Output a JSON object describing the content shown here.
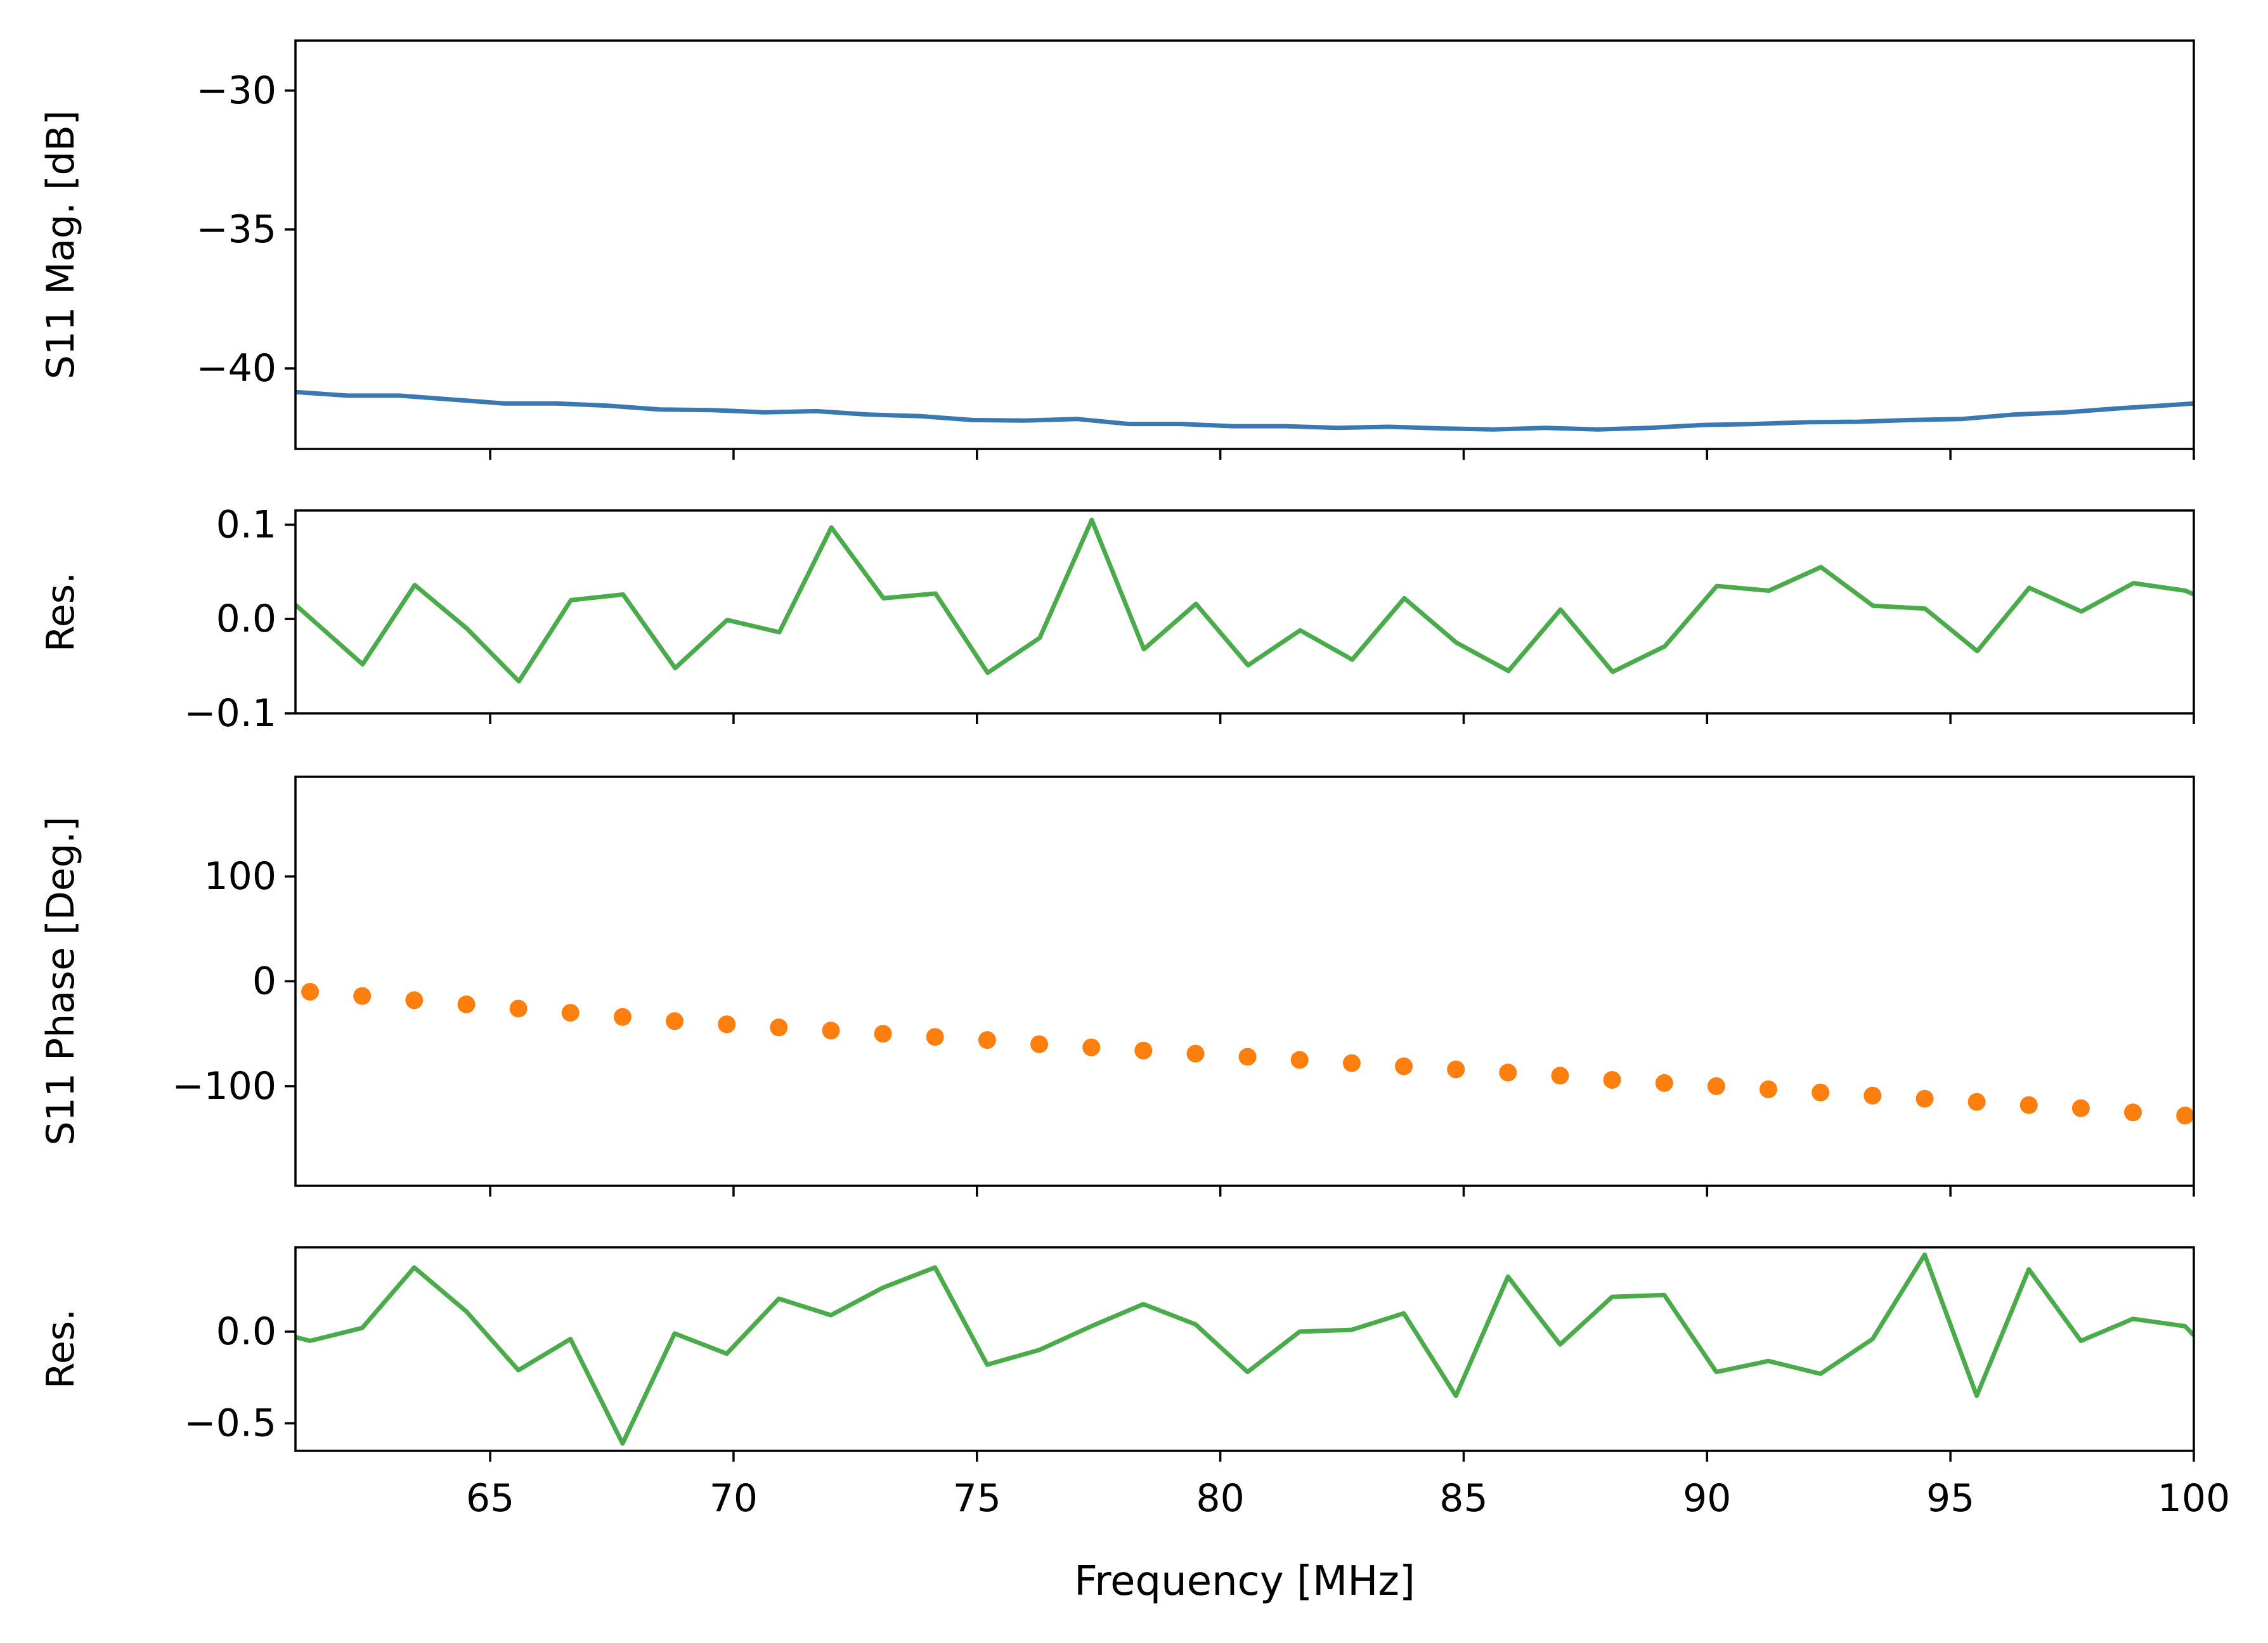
{
  "chart_data": [
    {
      "type": "line",
      "title": "",
      "xlabel": "",
      "ylabel": "S11 Mag. [dB]",
      "xlim": [
        61,
        100
      ],
      "ylim": [
        -42.9,
        -28.2
      ],
      "yticks": [
        -30,
        -35,
        -40
      ],
      "ytick_labels": [
        "−30",
        "−35",
        "−40"
      ],
      "color": "#3a78b2",
      "x": [
        61.0,
        62.07,
        63.14,
        64.21,
        65.28,
        66.35,
        67.42,
        68.49,
        69.56,
        70.63,
        71.7,
        72.77,
        73.84,
        74.91,
        75.98,
        77.05,
        78.12,
        79.19,
        80.26,
        81.33,
        82.4,
        83.47,
        84.54,
        85.61,
        86.68,
        87.75,
        88.82,
        89.89,
        90.96,
        92.03,
        93.1,
        94.17,
        95.24,
        96.31,
        97.38,
        98.45,
        99.52,
        100.0
      ],
      "y": [
        -40.85,
        -40.98,
        -40.98,
        -41.12,
        -41.26,
        -41.26,
        -41.34,
        -41.48,
        -41.5,
        -41.58,
        -41.54,
        -41.66,
        -41.72,
        -41.86,
        -41.88,
        -41.82,
        -42.0,
        -42.0,
        -42.08,
        -42.08,
        -42.14,
        -42.1,
        -42.16,
        -42.2,
        -42.14,
        -42.2,
        -42.14,
        -42.04,
        -42.0,
        -41.94,
        -41.92,
        -41.86,
        -41.82,
        -41.66,
        -41.58,
        -41.44,
        -41.32,
        -41.26
      ]
    },
    {
      "type": "line",
      "title": "",
      "xlabel": "",
      "ylabel": "Res.",
      "xlim": [
        61,
        100
      ],
      "ylim": [
        -0.1,
        0.115
      ],
      "yticks": [
        0.1,
        0.0,
        -0.1
      ],
      "ytick_labels": [
        "0.1",
        "0.0",
        "−0.1"
      ],
      "color": "#4aab4a",
      "x": [
        61.0,
        62.38,
        63.45,
        64.52,
        65.59,
        66.66,
        67.73,
        68.8,
        69.87,
        70.94,
        72.01,
        73.08,
        74.15,
        75.22,
        76.29,
        77.36,
        78.43,
        79.5,
        80.57,
        81.64,
        82.71,
        83.78,
        84.85,
        85.92,
        86.99,
        88.06,
        89.13,
        90.2,
        91.27,
        92.34,
        93.41,
        94.48,
        95.55,
        96.62,
        97.69,
        98.76,
        99.83,
        100.0
      ],
      "y": [
        0.015,
        -0.048,
        0.036,
        -0.01,
        -0.066,
        0.02,
        0.026,
        -0.052,
        -0.001,
        -0.014,
        0.097,
        0.022,
        0.027,
        -0.057,
        -0.02,
        0.105,
        -0.032,
        0.016,
        -0.049,
        -0.012,
        -0.043,
        0.022,
        -0.025,
        -0.055,
        0.01,
        -0.056,
        -0.029,
        0.035,
        0.03,
        0.055,
        0.014,
        0.011,
        -0.034,
        0.033,
        0.008,
        0.038,
        0.03,
        0.026
      ]
    },
    {
      "type": "scatter",
      "title": "",
      "xlabel": "",
      "ylabel": "S11 Phase [Deg.]",
      "xlim": [
        61,
        100
      ],
      "ylim": [
        -195,
        195
      ],
      "yticks": [
        100,
        0,
        -100
      ],
      "ytick_labels": [
        "100",
        "0",
        "−100"
      ],
      "color": "#ff7f0e",
      "x": [
        61.3,
        62.37,
        63.44,
        64.51,
        65.58,
        66.65,
        67.72,
        68.79,
        69.86,
        70.93,
        72.0,
        73.07,
        74.14,
        75.21,
        76.28,
        77.35,
        78.42,
        79.49,
        80.56,
        81.63,
        82.7,
        83.77,
        84.84,
        85.91,
        86.98,
        88.05,
        89.12,
        90.19,
        91.26,
        92.33,
        93.4,
        94.47,
        95.54,
        96.61,
        97.68,
        98.75,
        99.82
      ],
      "y": [
        -10,
        -14,
        -18,
        -22,
        -26,
        -30,
        -34,
        -38,
        -41,
        -44,
        -47,
        -50,
        -53,
        -56,
        -60,
        -63,
        -66,
        -69,
        -72,
        -75,
        -78,
        -81,
        -84,
        -87,
        -90,
        -94,
        -97,
        -100,
        -103,
        -106,
        -109,
        -112,
        -115,
        -118,
        -121,
        -125,
        -128
      ]
    },
    {
      "type": "line",
      "title": "",
      "xlabel": "Frequency [MHz]",
      "ylabel": "Res.",
      "xlim": [
        61,
        100
      ],
      "ylim": [
        -0.65,
        0.46
      ],
      "yticks": [
        0.0,
        -0.5
      ],
      "ytick_labels": [
        "0.0",
        "−0.5"
      ],
      "xticks": [
        65,
        70,
        75,
        80,
        85,
        90,
        95,
        100
      ],
      "xtick_labels": [
        "65",
        "70",
        "75",
        "80",
        "85",
        "90",
        "95",
        "100"
      ],
      "color": "#4aab4a",
      "x": [
        61.0,
        61.3,
        62.37,
        63.44,
        64.51,
        65.58,
        66.65,
        67.72,
        68.79,
        69.86,
        70.93,
        72.0,
        73.07,
        74.14,
        75.21,
        76.28,
        77.35,
        78.42,
        79.49,
        80.56,
        81.63,
        82.7,
        83.77,
        84.84,
        85.91,
        86.98,
        88.05,
        89.12,
        90.19,
        91.26,
        92.33,
        93.4,
        94.47,
        95.54,
        96.61,
        97.68,
        98.75,
        99.82,
        100.0
      ],
      "y": [
        -0.03,
        -0.05,
        0.02,
        0.35,
        0.11,
        -0.21,
        -0.04,
        -0.61,
        -0.01,
        -0.12,
        0.18,
        0.09,
        0.24,
        0.35,
        -0.18,
        -0.1,
        0.03,
        0.15,
        0.04,
        -0.22,
        0.0,
        0.01,
        0.1,
        -0.35,
        0.3,
        -0.07,
        0.19,
        0.2,
        -0.22,
        -0.16,
        -0.23,
        -0.04,
        0.42,
        -0.35,
        0.34,
        -0.05,
        0.07,
        0.03,
        -0.02
      ]
    }
  ]
}
